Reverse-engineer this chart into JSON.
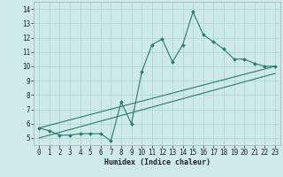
{
  "xlabel": "Humidex (Indice chaleur)",
  "bg_color": "#ceeae8",
  "line_color": "#2a7a6a",
  "grid_color": "#aad4d0",
  "spine_color": "#aaaaaa",
  "xlim": [
    -0.5,
    23.5
  ],
  "ylim": [
    4.5,
    14.5
  ],
  "xticks": [
    0,
    1,
    2,
    3,
    4,
    5,
    6,
    7,
    8,
    9,
    10,
    11,
    12,
    13,
    14,
    15,
    16,
    17,
    18,
    19,
    20,
    21,
    22,
    23
  ],
  "yticks": [
    5,
    6,
    7,
    8,
    9,
    10,
    11,
    12,
    13,
    14
  ],
  "series1_x": [
    0,
    1,
    2,
    3,
    4,
    5,
    6,
    7,
    8,
    9,
    10,
    11,
    12,
    13,
    14,
    15,
    16,
    17,
    18,
    19,
    20,
    21,
    22,
    23
  ],
  "series1_y": [
    5.7,
    5.5,
    5.2,
    5.2,
    5.3,
    5.3,
    5.3,
    4.8,
    7.5,
    6.0,
    9.6,
    11.5,
    11.9,
    10.3,
    11.5,
    13.8,
    12.2,
    11.7,
    11.2,
    10.5,
    10.5,
    10.2,
    10.0,
    10.0
  ],
  "series2_x": [
    0,
    23
  ],
  "series2_y": [
    5.7,
    10.0
  ],
  "series3_x": [
    0,
    23
  ],
  "series3_y": [
    5.0,
    9.5
  ],
  "xlabel_fontsize": 6,
  "tick_fontsize": 5.5,
  "linewidth": 0.8,
  "markersize": 2.0
}
